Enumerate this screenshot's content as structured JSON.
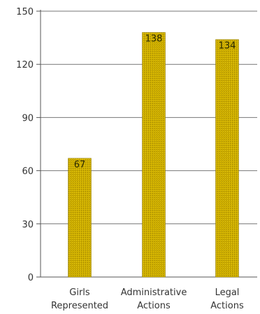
{
  "chart_data": {
    "type": "bar",
    "categories": [
      [
        "Girls",
        "Represented"
      ],
      [
        "Administrative",
        "Actions"
      ],
      [
        "Legal",
        "Actions"
      ]
    ],
    "values": [
      67,
      138,
      134
    ],
    "data_labels": [
      "67",
      "138",
      "134"
    ],
    "ylim": [
      0,
      150
    ],
    "yticks": [
      0,
      30,
      60,
      90,
      120,
      150
    ],
    "ytick_labels": [
      "0",
      "30",
      "60",
      "90",
      "120",
      "150"
    ],
    "grid": true,
    "title": "",
    "xlabel": "",
    "ylabel": ""
  },
  "colors": {
    "bar_fill": "#c9a800",
    "bar_stroke": "#8a7600",
    "grid": "#777777",
    "axis": "#555555"
  }
}
